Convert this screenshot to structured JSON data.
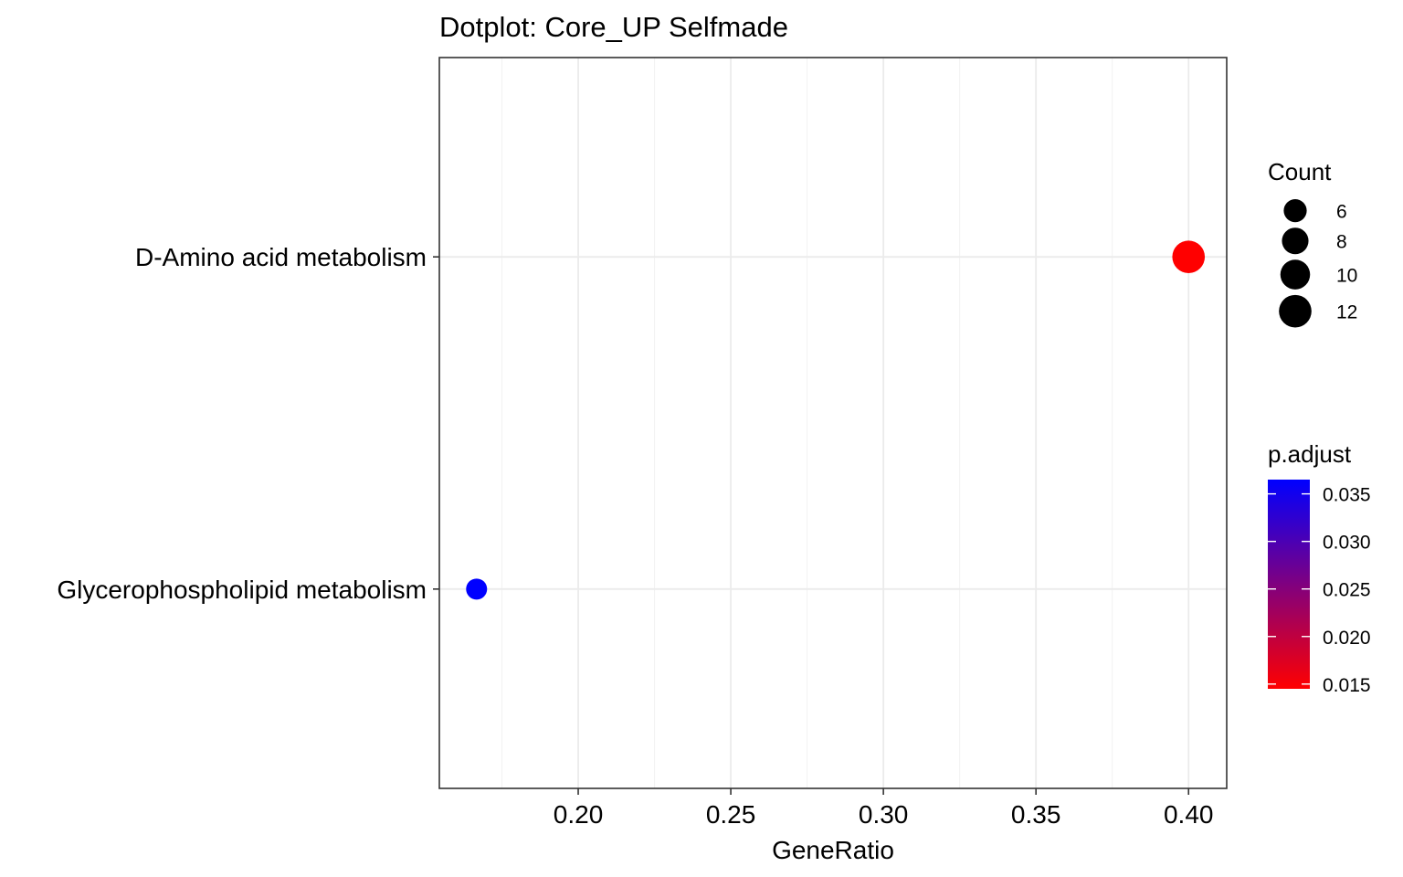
{
  "chart_data": {
    "type": "scatter",
    "title": "Dotplot: Core_UP Selfmade",
    "xlabel": "GeneRatio",
    "ylabel": "",
    "xlim": [
      0.1545,
      0.4125
    ],
    "x_ticks": [
      "0.20",
      "0.25",
      "0.30",
      "0.35",
      "0.40"
    ],
    "x_tick_values": [
      0.2,
      0.25,
      0.3,
      0.35,
      0.4
    ],
    "categories": [
      "D-Amino acid metabolism",
      "Glycerophospholipid metabolism"
    ],
    "points": [
      {
        "category": "D-Amino acid metabolism",
        "x": 0.4,
        "count": 12,
        "p_adjust": 0.0145,
        "color": "#ff0000"
      },
      {
        "category": "Glycerophospholipid metabolism",
        "x": 0.1667,
        "count": 5,
        "p_adjust": 0.0365,
        "color": "#0000ff"
      }
    ],
    "grid": true,
    "size_legend": {
      "title": "Count",
      "entries": [
        {
          "label": "6",
          "value": 6
        },
        {
          "label": "8",
          "value": 8
        },
        {
          "label": "10",
          "value": 10
        },
        {
          "label": "12",
          "value": 12
        }
      ]
    },
    "color_legend": {
      "title": "p.adjust",
      "range": [
        0.0145,
        0.0365
      ],
      "low_color": "#ff0000",
      "high_color": "#0000ff",
      "ticks": [
        {
          "label": "0.035",
          "value": 0.035
        },
        {
          "label": "0.030",
          "value": 0.03
        },
        {
          "label": "0.025",
          "value": 0.025
        },
        {
          "label": "0.020",
          "value": 0.02
        },
        {
          "label": "0.015",
          "value": 0.015
        }
      ]
    },
    "legend_position": "right"
  }
}
